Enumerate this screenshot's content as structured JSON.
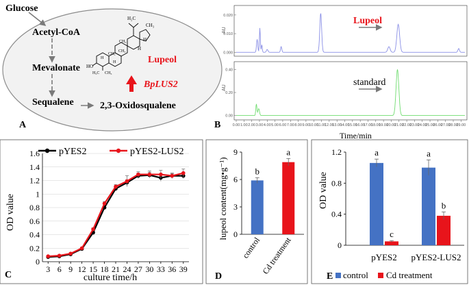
{
  "panel_labels": {
    "a": "A",
    "b": "B",
    "c": "C",
    "d": "D",
    "e": "E"
  },
  "pathway": {
    "compounds": [
      "Glucose",
      "Acetyl-CoA",
      "Mevalonate",
      "Sequalene",
      "2,3-Oxidosqualene"
    ],
    "product": "Lupeol",
    "enzyme": "BpLUS2",
    "structure_labels": [
      "H₂C",
      "CH₃",
      "H",
      "H",
      "HO",
      "CH₃",
      "CH₃",
      "CH₃",
      "H",
      "H",
      "H₃C",
      "CH₃"
    ]
  },
  "colors": {
    "red": "#e8141b",
    "blue": "#4472c4",
    "trace_blue": "#8a8fe6",
    "trace_green": "#6fdc6f",
    "ellipse": "#f2f2f2"
  },
  "chart_data": [
    {
      "panel": "B",
      "type": "line",
      "title": "",
      "xlabel": "Time/min",
      "xlim": [
        0,
        29.5
      ],
      "x_ticks": [
        "0.00",
        "1.00",
        "2.00",
        "3.00",
        "4.00",
        "5.00",
        "6.00",
        "7.00",
        "8.00",
        "9.00",
        "10.00",
        "11.00",
        "12.00",
        "13.00",
        "14.00",
        "15.00",
        "16.00",
        "17.00",
        "18.00",
        "19.00",
        "20.00",
        "21.00",
        "22.00",
        "23.00",
        "24.00",
        "25.00",
        "26.00",
        "27.00",
        "28.00",
        "29.00"
      ],
      "series": [
        {
          "name": "Lupeol",
          "ylabel": "AU",
          "ylim": [
            -0.001,
            0.024
          ],
          "y_ticks": [
            "0.000",
            "0.010",
            "0.020"
          ],
          "peaks": [
            [
              2.7,
              0.007,
              0.08
            ],
            [
              3.05,
              0.013,
              0.06
            ],
            [
              3.3,
              0.004,
              0.06
            ],
            [
              4.0,
              0.0015,
              0.1
            ],
            [
              5.8,
              0.003,
              0.08
            ],
            [
              10.9,
              0.021,
              0.12
            ],
            [
              19.7,
              0.003,
              0.15
            ],
            [
              20.9,
              0.015,
              0.18
            ],
            [
              28.7,
              0.002,
              0.1
            ]
          ]
        },
        {
          "name": "standard",
          "ylabel": "AU",
          "ylim": [
            -0.02,
            0.45
          ],
          "y_ticks": [
            "0.00",
            "0.20",
            "0.40"
          ],
          "peaks": [
            [
              2.6,
              0.1,
              0.07
            ],
            [
              2.9,
              0.06,
              0.1
            ],
            [
              20.8,
              0.4,
              0.18
            ]
          ]
        }
      ]
    },
    {
      "panel": "C",
      "type": "line",
      "xlabel": "culture time/h",
      "ylabel": "OD value",
      "ylim": [
        0,
        1.6
      ],
      "y_ticks": [
        "0",
        "0.2",
        "0.4",
        "0.6",
        "0.8",
        "1",
        "1.2",
        "1.4",
        "1.6"
      ],
      "x": [
        3,
        6,
        9,
        12,
        15,
        18,
        21,
        24,
        27,
        30,
        33,
        36,
        39
      ],
      "series": [
        {
          "name": "pYES2",
          "color": "#000000",
          "values": [
            0.07,
            0.08,
            0.11,
            0.19,
            0.43,
            0.8,
            1.08,
            1.17,
            1.27,
            1.28,
            1.24,
            1.27,
            1.27
          ],
          "errors": [
            0.01,
            0.01,
            0.01,
            0.01,
            0.02,
            0.03,
            0.03,
            0.04,
            0.04,
            0.04,
            0.05,
            0.03,
            0.04
          ]
        },
        {
          "name": "pYES2-LUS2",
          "color": "#e8141b",
          "values": [
            0.08,
            0.09,
            0.12,
            0.2,
            0.48,
            0.86,
            1.11,
            1.19,
            1.29,
            1.29,
            1.29,
            1.27,
            1.31
          ],
          "errors": [
            0.01,
            0.01,
            0.01,
            0.01,
            0.02,
            0.03,
            0.03,
            0.08,
            0.04,
            0.05,
            0.06,
            0.04,
            0.06
          ]
        }
      ]
    },
    {
      "panel": "D",
      "type": "bar",
      "ylabel": "lupeol content(mg•g⁻¹)",
      "ylim": [
        0,
        9
      ],
      "y_ticks": [
        "0",
        "3",
        "6",
        "9"
      ],
      "categories": [
        "control",
        "Cd treatment"
      ],
      "values": [
        5.9,
        7.9
      ],
      "errors": [
        0.3,
        0.4
      ],
      "letters": [
        "b",
        "a"
      ],
      "colors": [
        "#4472c4",
        "#e8141b"
      ]
    },
    {
      "panel": "E",
      "type": "bar",
      "ylabel": "OD value",
      "ylim": [
        0,
        1.2
      ],
      "y_ticks": [
        "0",
        "0.4",
        "0.8",
        "1.2"
      ],
      "categories": [
        "pYES2",
        "pYES2-LUS2"
      ],
      "series": [
        {
          "name": "control",
          "color": "#4472c4",
          "values": [
            1.06,
            1.0
          ],
          "errors": [
            0.05,
            0.1
          ],
          "letters": [
            "a",
            "a"
          ]
        },
        {
          "name": "Cd treatment",
          "color": "#e8141b",
          "values": [
            0.05,
            0.38
          ],
          "errors": [
            0.01,
            0.05
          ],
          "letters": [
            "c",
            "b"
          ]
        }
      ]
    }
  ]
}
